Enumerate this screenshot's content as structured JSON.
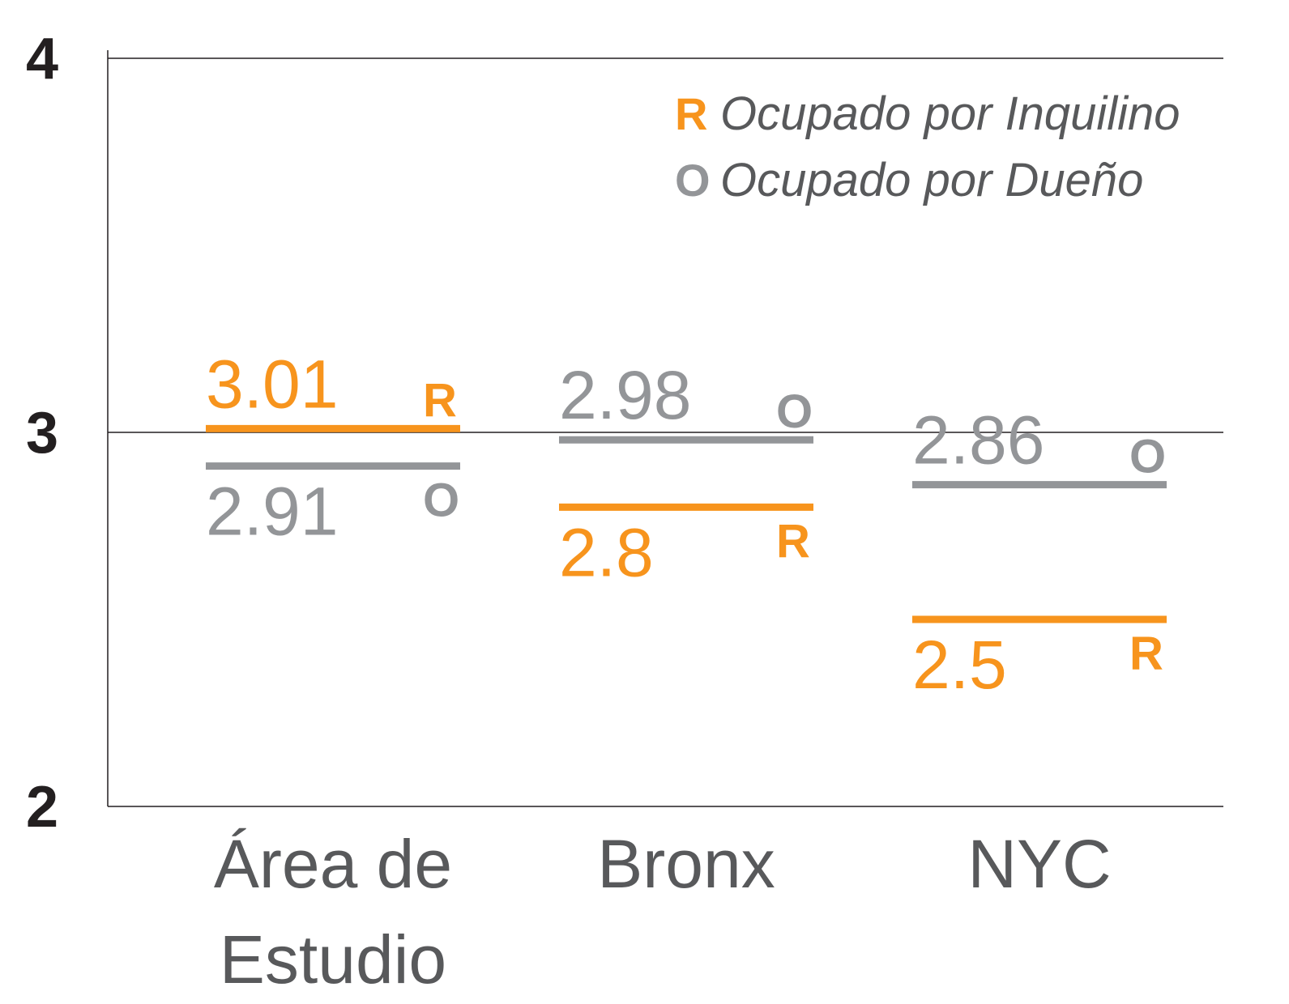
{
  "chart_data": {
    "type": "level",
    "categories": [
      "Área de Estudio",
      "Bronx",
      "NYC"
    ],
    "series": [
      {
        "name": "Ocupado por Inquilino",
        "symbol": "R",
        "color": "#f7941d",
        "values": [
          3.01,
          2.8,
          2.5
        ]
      },
      {
        "name": "Ocupado por Dueño",
        "symbol": "O",
        "color": "#939598",
        "values": [
          2.91,
          2.98,
          2.86
        ]
      }
    ],
    "ylim": [
      2,
      4
    ],
    "yticks": [
      2,
      3,
      4
    ],
    "grid": true,
    "legend": "upper right"
  }
}
